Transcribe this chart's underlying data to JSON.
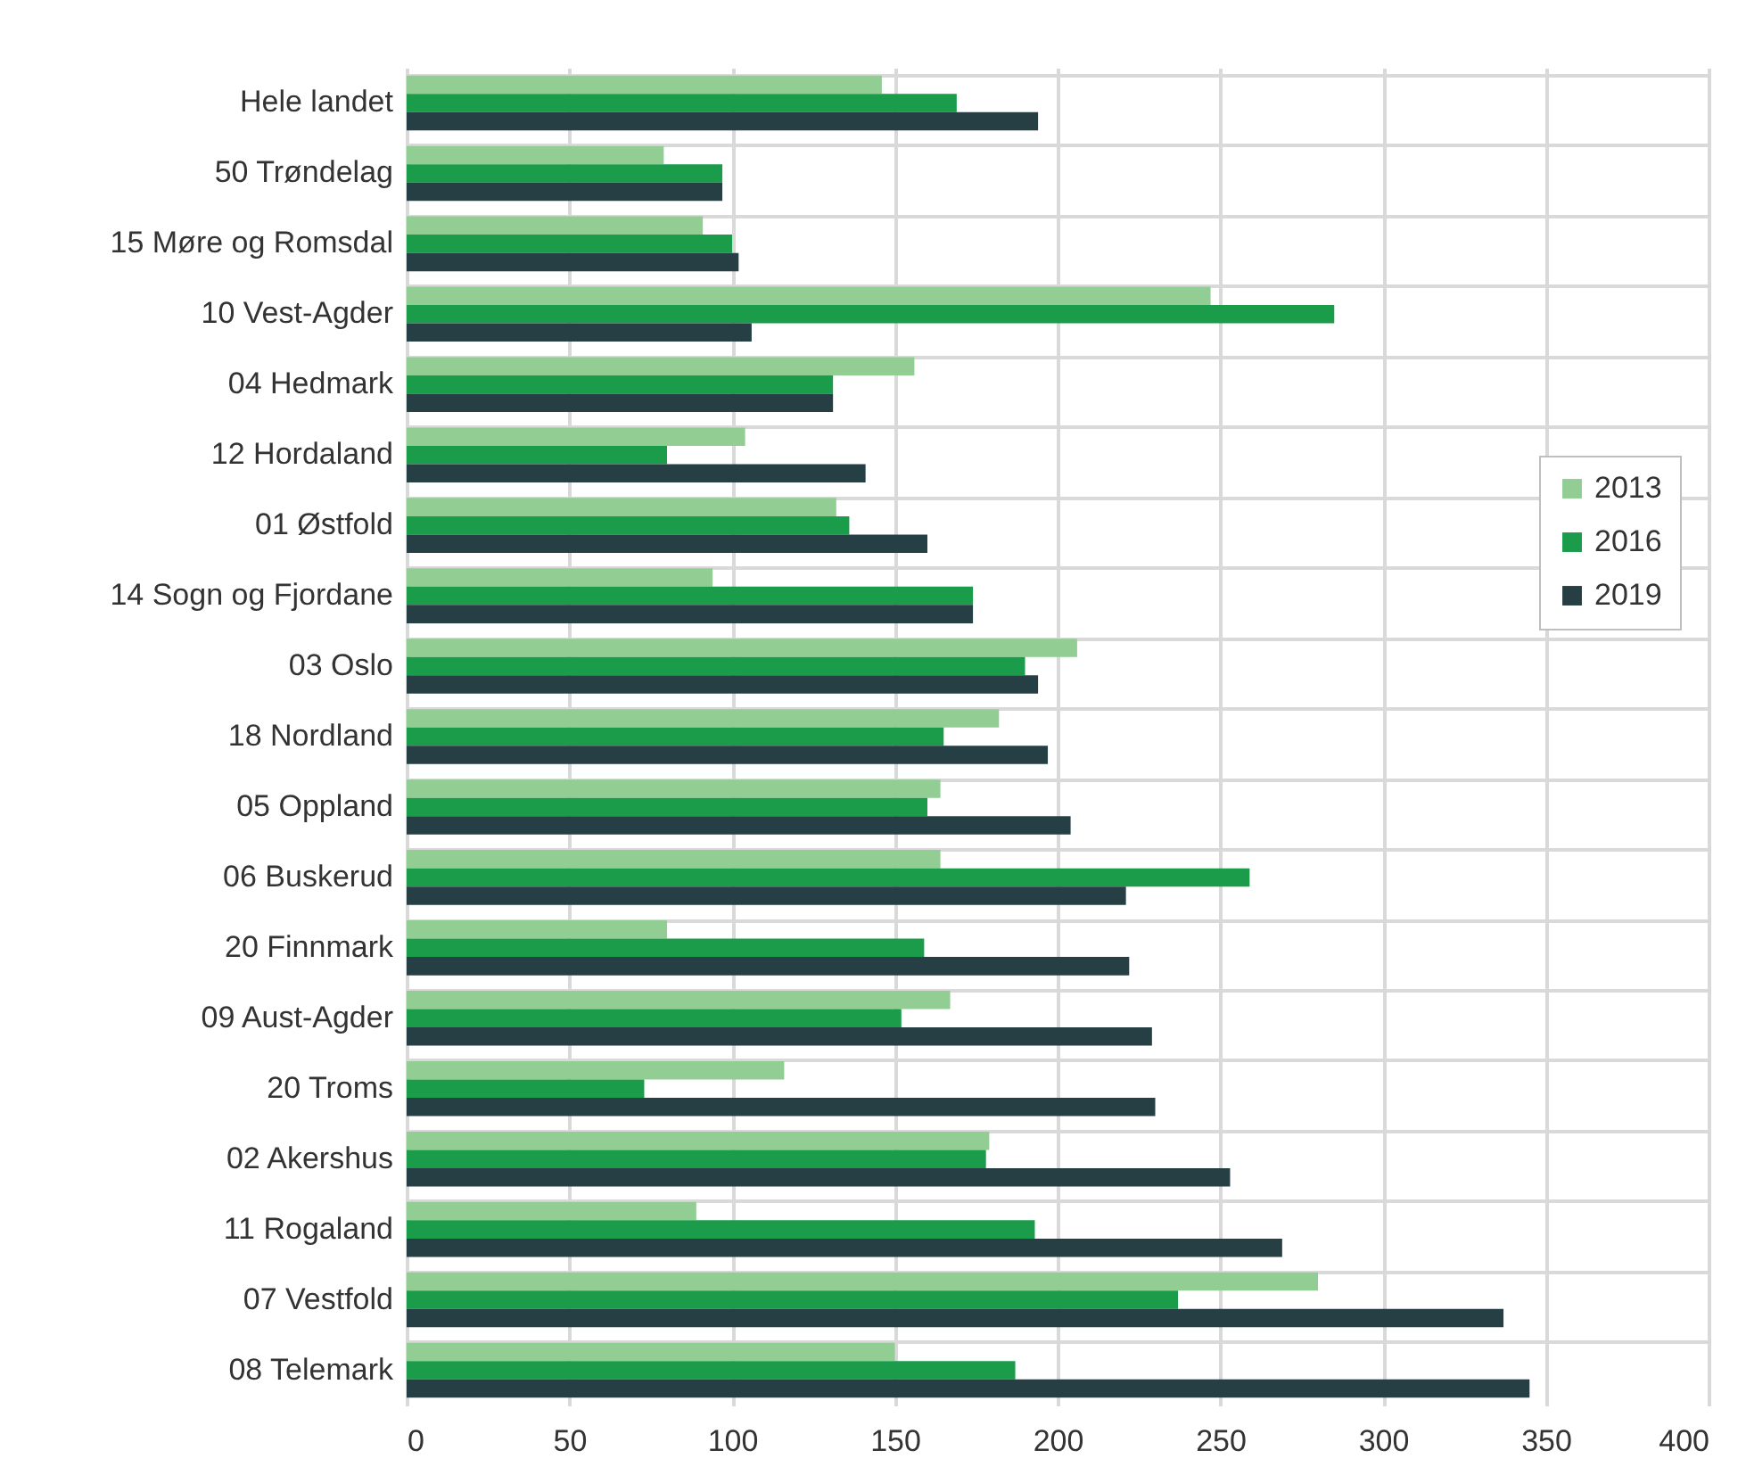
{
  "chart_data": {
    "type": "bar",
    "orientation": "horizontal",
    "categories": [
      "Hele landet",
      "50 Trøndelag",
      "15 Møre og Romsdal",
      "10 Vest-Agder",
      "04 Hedmark",
      "12 Hordaland",
      "01 Østfold",
      "14 Sogn og Fjordane",
      "03 Oslo",
      "18 Nordland",
      "05 Oppland",
      "06 Buskerud",
      "20 Finnmark",
      "09 Aust-Agder",
      "20 Troms",
      "02 Akershus",
      "11 Rogaland",
      "07 Vestfold",
      "08 Telemark"
    ],
    "series": [
      {
        "name": "2013",
        "color": "#92cd94",
        "values": [
          146,
          79,
          91,
          247,
          156,
          104,
          132,
          94,
          206,
          182,
          164,
          164,
          80,
          167,
          116,
          179,
          89,
          280,
          150
        ]
      },
      {
        "name": "2016",
        "color": "#1a9c4a",
        "values": [
          169,
          97,
          100,
          285,
          131,
          80,
          136,
          174,
          190,
          165,
          160,
          259,
          159,
          152,
          73,
          178,
          193,
          237,
          187
        ]
      },
      {
        "name": "2019",
        "color": "#263f45",
        "values": [
          194,
          97,
          102,
          106,
          131,
          141,
          160,
          174,
          194,
          197,
          204,
          221,
          222,
          229,
          230,
          253,
          269,
          337,
          345
        ]
      }
    ],
    "xlim": [
      0,
      400
    ],
    "xticks": [
      0,
      50,
      100,
      150,
      200,
      250,
      300,
      350,
      400
    ],
    "grid": true,
    "legend": "right"
  }
}
